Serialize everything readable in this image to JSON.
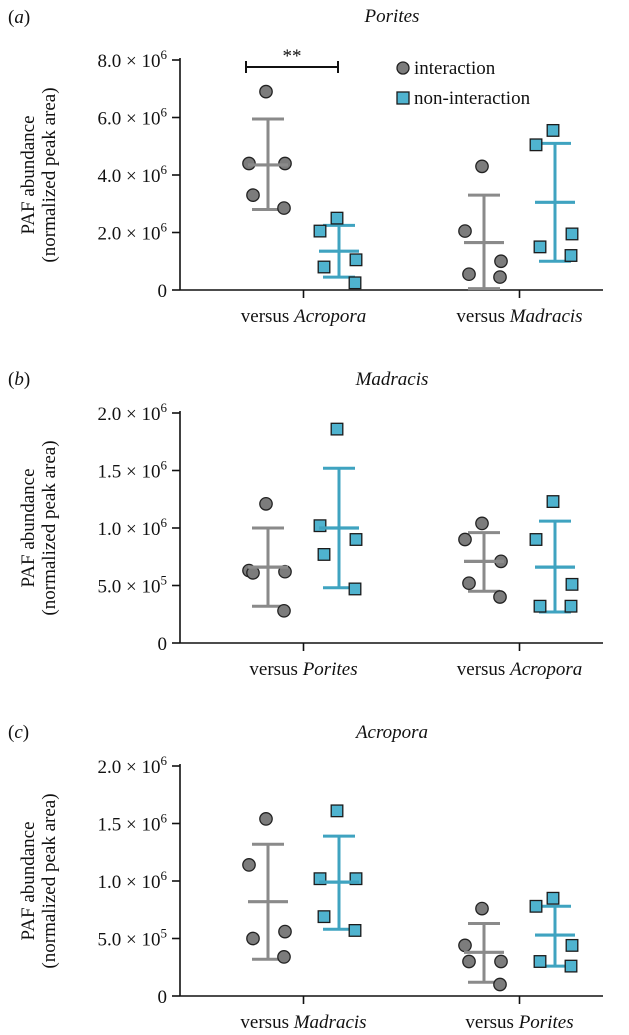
{
  "chart_data": [
    {
      "type": "scatter",
      "panel_label": "(a)",
      "title": "Porites",
      "ylabel_line1": "PAF abundance",
      "ylabel_line2": "(normalized peak area)",
      "ylim": [
        0,
        8000000
      ],
      "yticks": [
        {
          "value": 0,
          "mantissa": "0",
          "exp": ""
        },
        {
          "value": 2000000,
          "mantissa": "2.0",
          "exp": "6"
        },
        {
          "value": 4000000,
          "mantissa": "4.0",
          "exp": "6"
        },
        {
          "value": 6000000,
          "mantissa": "6.0",
          "exp": "6"
        },
        {
          "value": 8000000,
          "mantissa": "8.0",
          "exp": "6"
        }
      ],
      "legend": [
        {
          "label": "interaction",
          "marker": "circle",
          "color": "#8a8a8a"
        },
        {
          "label": "non-interaction",
          "marker": "square",
          "color": "#4fb3cf"
        }
      ],
      "significance": {
        "label": "**",
        "between": [
          0,
          1
        ]
      },
      "groups": [
        {
          "label_prefix": "versus ",
          "label_species": "Acropora",
          "series": [
            {
              "name": "interaction",
              "points": [
                6900000,
                4400000,
                4400000,
                3300000,
                2850000
              ],
              "mean": 4350000,
              "sd_upper": 5950000,
              "sd_lower": 2800000
            },
            {
              "name": "non-interaction",
              "points": [
                2500000,
                2050000,
                1050000,
                800000,
                250000
              ],
              "mean": 1350000,
              "sd_upper": 2250000,
              "sd_lower": 450000
            }
          ]
        },
        {
          "label_prefix": "versus ",
          "label_species": "Madracis",
          "series": [
            {
              "name": "interaction",
              "points": [
                4300000,
                2050000,
                1000000,
                550000,
                450000
              ],
              "mean": 1650000,
              "sd_upper": 3300000,
              "sd_lower": 50000
            },
            {
              "name": "non-interaction",
              "points": [
                5550000,
                5050000,
                1950000,
                1500000,
                1200000
              ],
              "mean": 3050000,
              "sd_upper": 5100000,
              "sd_lower": 1000000
            }
          ]
        }
      ]
    },
    {
      "type": "scatter",
      "panel_label": "(b)",
      "title": "Madracis",
      "ylabel_line1": "PAF abundance",
      "ylabel_line2": "(normalized peak area)",
      "ylim": [
        0,
        2000000
      ],
      "yticks": [
        {
          "value": 0,
          "mantissa": "0",
          "exp": ""
        },
        {
          "value": 500000,
          "mantissa": "5.0",
          "exp": "5"
        },
        {
          "value": 1000000,
          "mantissa": "1.0",
          "exp": "6"
        },
        {
          "value": 1500000,
          "mantissa": "1.5",
          "exp": "6"
        },
        {
          "value": 2000000,
          "mantissa": "2.0",
          "exp": "6"
        }
      ],
      "groups": [
        {
          "label_prefix": "versus ",
          "label_species": "Porites",
          "series": [
            {
              "name": "interaction",
              "points": [
                1210000,
                630000,
                620000,
                610000,
                280000
              ],
              "mean": 660000,
              "sd_upper": 1000000,
              "sd_lower": 320000
            },
            {
              "name": "non-interaction",
              "points": [
                1860000,
                1020000,
                900000,
                770000,
                470000
              ],
              "mean": 1000000,
              "sd_upper": 1520000,
              "sd_lower": 480000
            }
          ]
        },
        {
          "label_prefix": "versus ",
          "label_species": "Acropora",
          "series": [
            {
              "name": "interaction",
              "points": [
                1040000,
                900000,
                710000,
                520000,
                400000
              ],
              "mean": 710000,
              "sd_upper": 960000,
              "sd_lower": 450000
            },
            {
              "name": "non-interaction",
              "points": [
                1230000,
                900000,
                510000,
                320000,
                320000
              ],
              "mean": 660000,
              "sd_upper": 1060000,
              "sd_lower": 270000
            }
          ]
        }
      ]
    },
    {
      "type": "scatter",
      "panel_label": "(c)",
      "title": "Acropora",
      "ylabel_line1": "PAF abundance",
      "ylabel_line2": "(normalized peak area)",
      "ylim": [
        0,
        2000000
      ],
      "yticks": [
        {
          "value": 0,
          "mantissa": "0",
          "exp": ""
        },
        {
          "value": 500000,
          "mantissa": "5.0",
          "exp": "5"
        },
        {
          "value": 1000000,
          "mantissa": "1.0",
          "exp": "6"
        },
        {
          "value": 1500000,
          "mantissa": "1.5",
          "exp": "6"
        },
        {
          "value": 2000000,
          "mantissa": "2.0",
          "exp": "6"
        }
      ],
      "groups": [
        {
          "label_prefix": "versus ",
          "label_species": "Madracis",
          "series": [
            {
              "name": "interaction",
              "points": [
                1540000,
                1140000,
                560000,
                500000,
                340000
              ],
              "mean": 820000,
              "sd_upper": 1320000,
              "sd_lower": 320000
            },
            {
              "name": "non-interaction",
              "points": [
                1610000,
                1020000,
                1020000,
                690000,
                570000
              ],
              "mean": 990000,
              "sd_upper": 1390000,
              "sd_lower": 580000
            }
          ]
        },
        {
          "label_prefix": "versus ",
          "label_species": "Porites",
          "series": [
            {
              "name": "interaction",
              "points": [
                760000,
                440000,
                300000,
                300000,
                100000
              ],
              "mean": 380000,
              "sd_upper": 630000,
              "sd_lower": 120000
            },
            {
              "name": "non-interaction",
              "points": [
                850000,
                780000,
                440000,
                300000,
                260000
              ],
              "mean": 530000,
              "sd_upper": 780000,
              "sd_lower": 260000
            }
          ]
        }
      ]
    }
  ]
}
